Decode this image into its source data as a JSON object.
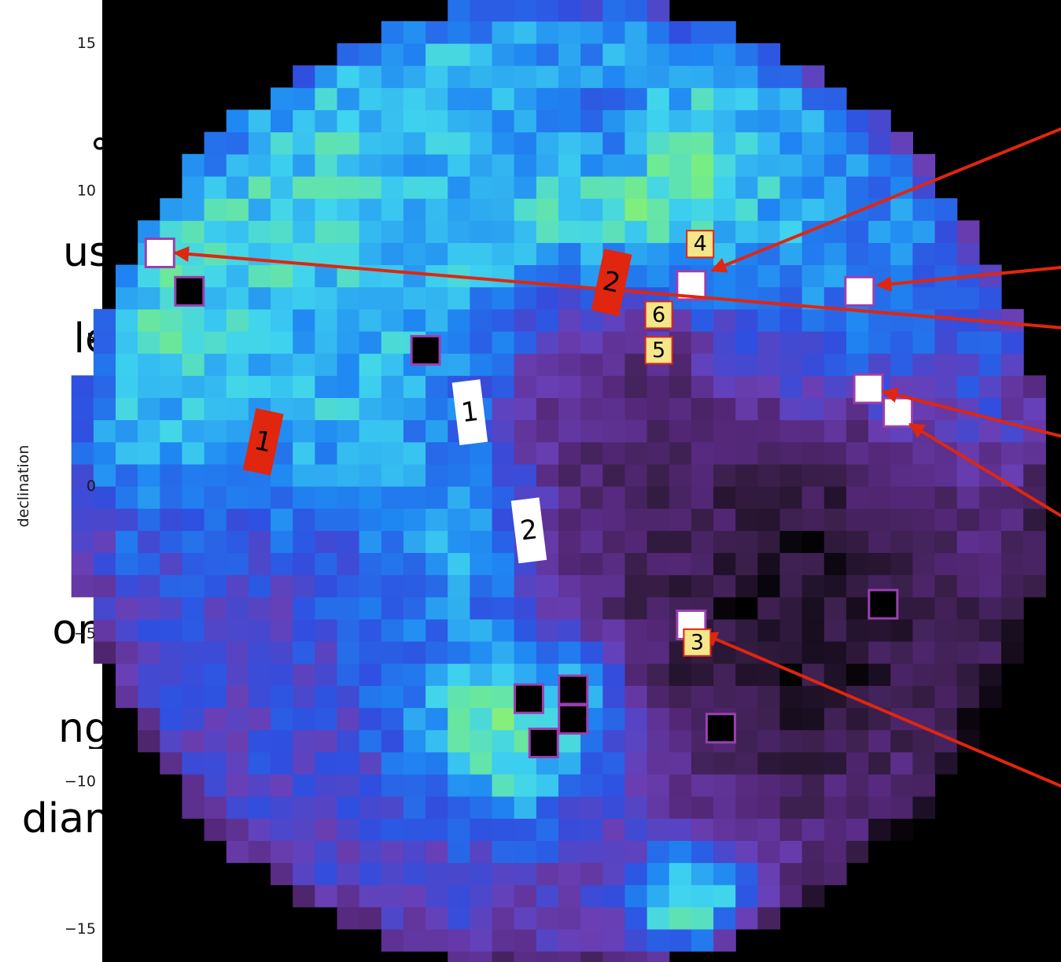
{
  "slide_text": [
    {
      "text": "°",
      "top": 170
    },
    {
      "text": "us",
      "top": 295
    },
    {
      "text": "le",
      "top": 405
    },
    {
      "text": "ort",
      "top": 775
    },
    {
      "text": "ng",
      "top": 900
    },
    {
      "text": "dian",
      "top": 1015
    }
  ],
  "chart_data": {
    "type": "heatmap",
    "ylabel": "declination",
    "yticks": [
      15,
      10,
      5,
      0,
      -5,
      -10,
      -15
    ],
    "ylim": [
      -17,
      16.5
    ],
    "xlim": [
      -17,
      17
    ],
    "map_radius": 16.5,
    "grid": false,
    "colormap": [
      "#000000",
      "#3a1f4a",
      "#55287a",
      "#6a3fb5",
      "#2f4fe0",
      "#1f86f2",
      "#3fd4ef",
      "#7aee7e",
      "#eff060",
      "#f7a03c",
      "#ffffff"
    ],
    "hot_spots": [
      {
        "dec": 9.6,
        "ra": 3,
        "level": 0.72,
        "radius": 3
      },
      {
        "dec": 6.2,
        "ra": -11.5,
        "level": 0.62,
        "radius": 3.5
      },
      {
        "dec": 4.5,
        "ra": -7,
        "level": 0.56,
        "radius": 2.5
      },
      {
        "dec": -7.3,
        "ra": 0.5,
        "level": 0.94,
        "radius": 1.2
      },
      {
        "dec": -7.8,
        "ra": -1.5,
        "level": 0.78,
        "radius": 2.5
      },
      {
        "dec": -14,
        "ra": 4.5,
        "level": 0.74,
        "radius": 1.5
      },
      {
        "dec": -1.5,
        "ra": -3,
        "level": 0.6,
        "radius": 2.5
      },
      {
        "dec": 5.8,
        "ra": 7.5,
        "level": 0.58,
        "radius": 2.5
      },
      {
        "dec": 13,
        "ra": 1,
        "level": 0.48,
        "radius": 2
      }
    ],
    "cold_spots": [
      {
        "dec": -4,
        "ra": 8,
        "level": 0.04,
        "radius": 5
      },
      {
        "dec": 0,
        "ra": 3.5,
        "level": 0.12,
        "radius": 3
      },
      {
        "dec": 3.5,
        "ra": 2,
        "level": 0.2,
        "radius": 2.5
      }
    ],
    "white_markers": [
      {
        "dec": 7.9,
        "ra": -13.5
      },
      {
        "dec": 6.8,
        "ra": 4.5
      },
      {
        "dec": 6.6,
        "ra": 10.2
      },
      {
        "dec": 3.3,
        "ra": 10.5
      },
      {
        "dec": 2.5,
        "ra": 11.5
      },
      {
        "dec": -4.7,
        "ra": 4.5
      }
    ],
    "black_markers": [
      {
        "dec": 6.6,
        "ra": -12.5
      },
      {
        "dec": 4.6,
        "ra": -4.5
      },
      {
        "dec": -4,
        "ra": 11
      },
      {
        "dec": -6.9,
        "ra": 0.5
      },
      {
        "dec": -7.2,
        "ra": -1
      },
      {
        "dec": -7.9,
        "ra": 0.5
      },
      {
        "dec": -8.7,
        "ra": -0.5
      },
      {
        "dec": -8.2,
        "ra": 5.5
      }
    ],
    "annotation_labels": [
      {
        "text": "1",
        "dec": 1.5,
        "ra": -10,
        "style": "red"
      },
      {
        "text": "2",
        "dec": 6.9,
        "ra": 1.8,
        "style": "red"
      },
      {
        "text": "1",
        "dec": 2.5,
        "ra": -3,
        "style": "white"
      },
      {
        "text": "2",
        "dec": -1.5,
        "ra": -1,
        "style": "white"
      },
      {
        "text": "4",
        "dec": 8.2,
        "ra": 4.8,
        "style": "yellow"
      },
      {
        "text": "6",
        "dec": 5.8,
        "ra": 3.4,
        "style": "yellow"
      },
      {
        "text": "5",
        "dec": 4.6,
        "ra": 3.4,
        "style": "yellow"
      },
      {
        "text": "3",
        "dec": -5.3,
        "ra": 4.7,
        "style": "yellow"
      }
    ],
    "arrows": [
      {
        "from": {
          "dec": 12.9,
          "ra": 19
        },
        "to": {
          "dec": 7.3,
          "ra": 5.2
        }
      },
      {
        "from": {
          "dec": 7.6,
          "ra": 19
        },
        "to": {
          "dec": 6.8,
          "ra": 10.8
        }
      },
      {
        "from": {
          "dec": 5.2,
          "ra": 19
        },
        "to": {
          "dec": 7.9,
          "ra": -13
        }
      },
      {
        "from": {
          "dec": 1.2,
          "ra": 19
        },
        "to": {
          "dec": 3.2,
          "ra": 11
        }
      },
      {
        "from": {
          "dec": -2.2,
          "ra": 19
        },
        "to": {
          "dec": 2.1,
          "ra": 11.9
        }
      },
      {
        "from": {
          "dec": -11,
          "ra": 19
        },
        "to": {
          "dec": -5,
          "ra": 4.9
        }
      }
    ]
  }
}
